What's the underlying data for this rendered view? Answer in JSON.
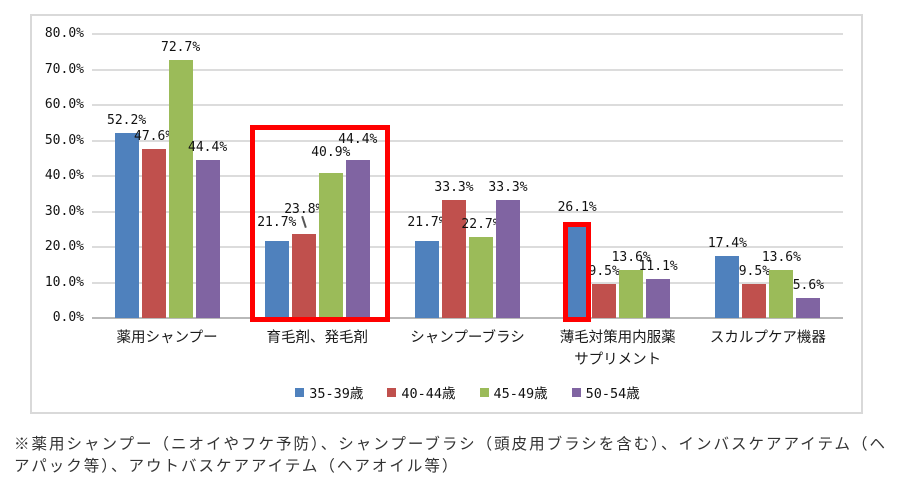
{
  "chart_data": {
    "type": "bar",
    "title": "",
    "xlabel": "",
    "ylabel": "",
    "ylim": [
      0,
      80
    ],
    "grid": true,
    "legend_position": "bottom",
    "yticks": [
      "0.0%",
      "10.0%",
      "20.0%",
      "30.0%",
      "40.0%",
      "50.0%",
      "60.0%",
      "70.0%",
      "80.0%"
    ],
    "categories": [
      "薬用シャンプー",
      "育毛剤、発毛剤",
      "シャンプーブラシ",
      "薄毛対策用内服薬\nサプリメント",
      "スカルプケア機器"
    ],
    "series": [
      {
        "name": "35-39歳",
        "color": "#4F81BD",
        "values": [
          52.2,
          21.7,
          21.7,
          26.1,
          17.4
        ]
      },
      {
        "name": "40-44歳",
        "color": "#C0504D",
        "values": [
          47.6,
          23.8,
          33.3,
          9.5,
          9.5
        ]
      },
      {
        "name": "45-49歳",
        "color": "#9BBB59",
        "values": [
          72.7,
          40.9,
          22.7,
          13.6,
          13.6
        ]
      },
      {
        "name": "50-54歳",
        "color": "#8064A2",
        "values": [
          44.4,
          44.4,
          33.3,
          11.1,
          5.6
        ]
      }
    ],
    "value_label_suffix": "%"
  },
  "annotations": {
    "highlight_color": "#FF0000",
    "highlights": [
      {
        "id": "hair-growth-group-highlight",
        "target": "育毛剤、発毛剤 全バー"
      },
      {
        "id": "supplement-35-39-bar-highlight",
        "target": "薄毛対策用内服薬サプリメント 35-39歳バー"
      }
    ]
  },
  "footnote": "※薬用シャンプー（ニオイやフケ予防）、シャンプーブラシ（頭皮用ブラシを含む）、インバスケアアイテム（ヘアパック等）、アウトバスケアアイテム（ヘアオイル等）"
}
